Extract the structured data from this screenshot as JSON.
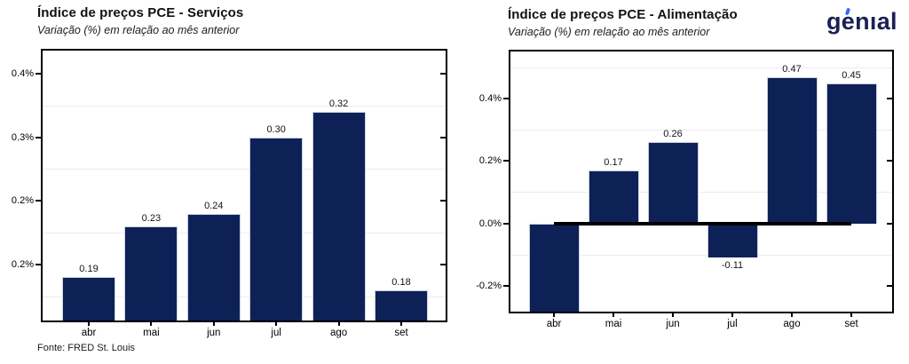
{
  "page": {
    "background": "#ffffff"
  },
  "branding": {
    "logo_text": "genıal",
    "logo_color": "#1b2153",
    "logo_accent_color": "#3468fa"
  },
  "footer": {
    "source_label": "Fonte: FRED St. Louis"
  },
  "chart_data": [
    {
      "type": "bar",
      "title": "Índice de preços PCE - Serviços",
      "subtitle": "Variação (%) em relação ao mês anterior",
      "categories": [
        "abr",
        "mai",
        "jun",
        "jul",
        "ago",
        "set"
      ],
      "values": [
        0.19,
        0.23,
        0.24,
        0.3,
        0.32,
        0.18
      ],
      "value_labels": [
        "0.19",
        "0.23",
        "0.24",
        "0.30",
        "0.32",
        "0.18"
      ],
      "clipped": [
        false,
        false,
        false,
        false,
        false,
        false
      ],
      "ylim": [
        0.156,
        0.368
      ],
      "yticks": [
        {
          "value": 0.35,
          "label": "0.4%"
        },
        {
          "value": 0.3,
          "label": "0.3%"
        },
        {
          "value": 0.25,
          "label": "0.2%"
        },
        {
          "value": 0.2,
          "label": "0.2%"
        }
      ],
      "gridlines": [
        0.325,
        0.275,
        0.225,
        0.175
      ],
      "grid": "horizontal-minor",
      "legend": "none",
      "bar_color": "#0e2157",
      "zero_line": false
    },
    {
      "type": "bar",
      "title": "Índice de preços PCE - Alimentação",
      "subtitle": "Variação (%) em relação ao mês anterior",
      "categories": [
        "abr",
        "mai",
        "jun",
        "jul",
        "ago",
        "set"
      ],
      "values": [
        -0.29,
        0.17,
        0.26,
        -0.11,
        0.47,
        0.45
      ],
      "value_labels": [
        "",
        "0.17",
        "0.26",
        "-0.11",
        "0.47",
        "0.45"
      ],
      "clipped": [
        true,
        false,
        false,
        false,
        false,
        false
      ],
      "ylim": [
        -0.283,
        0.551
      ],
      "yticks": [
        {
          "value": 0.4,
          "label": "0.4%"
        },
        {
          "value": 0.2,
          "label": "0.2%"
        },
        {
          "value": 0.0,
          "label": "0.0%"
        },
        {
          "value": -0.2,
          "label": "-0.2%"
        }
      ],
      "gridlines": [
        0.5,
        0.3,
        0.1,
        -0.1
      ],
      "grid": "horizontal-minor",
      "legend": "none",
      "bar_color": "#0e2157",
      "zero_line": true
    }
  ]
}
